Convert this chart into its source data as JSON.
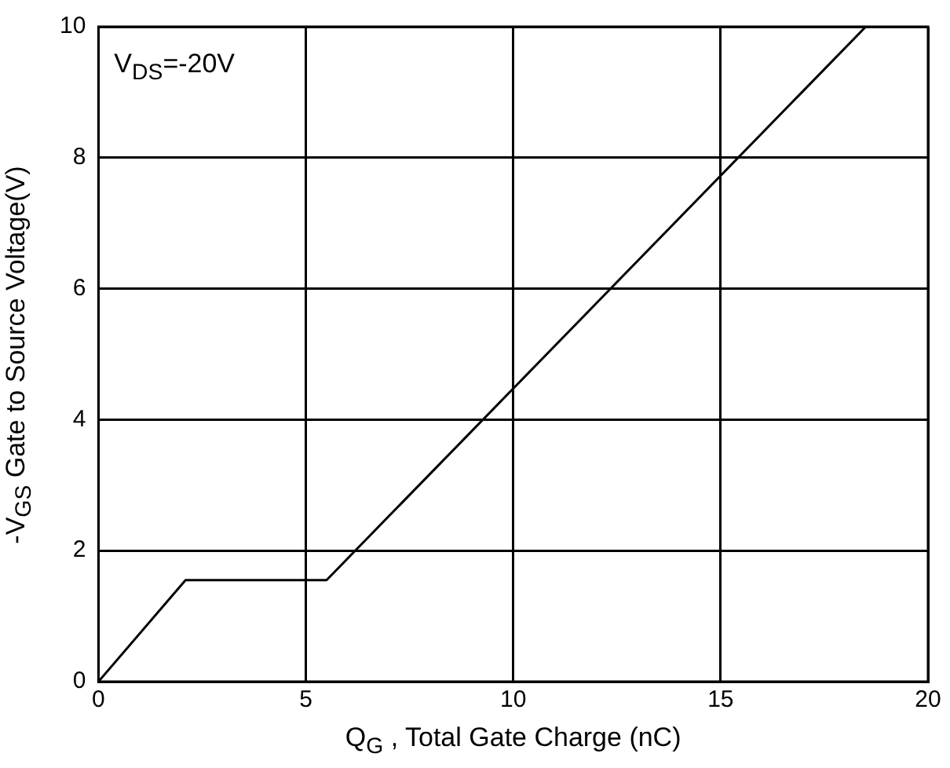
{
  "chart_data": {
    "type": "line",
    "xlabel": "Q$_{G}$ , Total Gate Charge (nC)",
    "ylabel": "-V$_{GS}$ Gate to Source Voltage(V)",
    "annotations": [
      "V$_{DS}$=-20V"
    ],
    "series": [
      {
        "color": "#000000",
        "x": [
          0,
          2.1,
          5.5,
          18.5
        ],
        "values": [
          0,
          1.55,
          1.55,
          10
        ]
      }
    ],
    "xlim": [
      0,
      20
    ],
    "xticks": [
      0,
      5,
      10,
      15,
      20
    ],
    "ylim": [
      0,
      10
    ],
    "yticks": [
      0,
      2,
      4,
      6,
      8,
      10
    ],
    "grid": true,
    "legend": false,
    "marker": "none",
    "line_style": "solid"
  }
}
